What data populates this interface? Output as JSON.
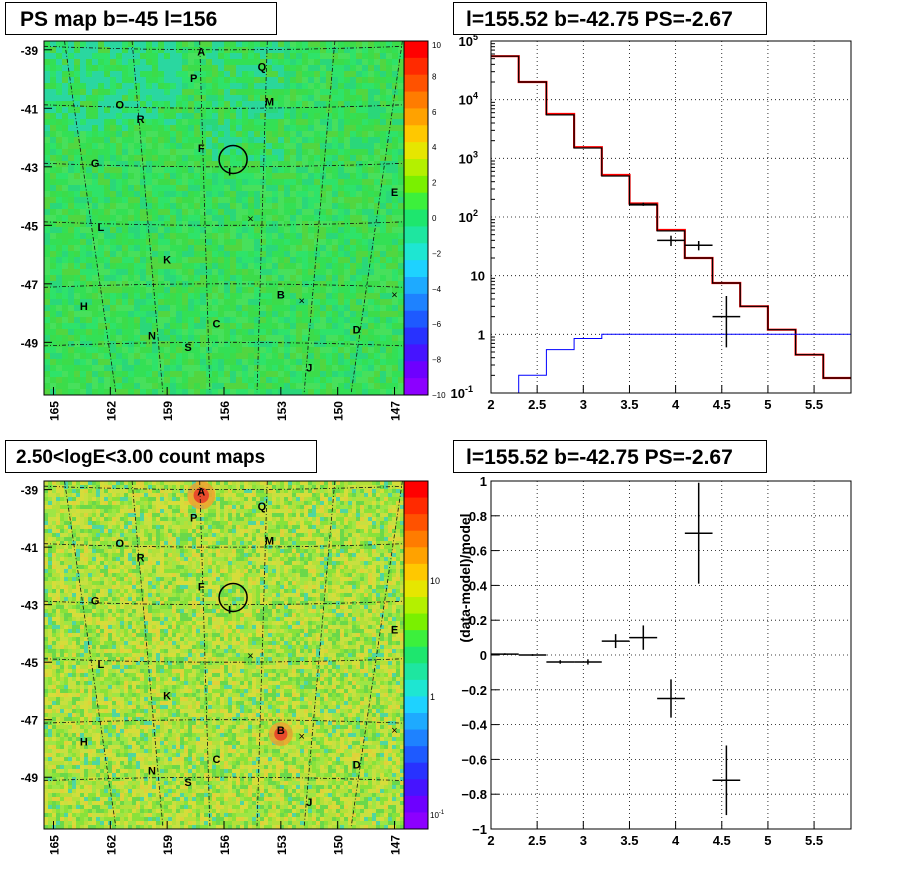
{
  "panels": {
    "ps_map": {
      "title": "PS map b=-45 l=156",
      "colorbar_ticks": [
        "10",
        "8",
        "6",
        "4",
        "2",
        "0",
        "−2",
        "−4",
        "−6",
        "−8",
        "−10"
      ],
      "colorbar_range": [
        -10,
        10
      ]
    },
    "count_map": {
      "title": "2.50<logE<3.00 count maps",
      "colorbar_ticks": [
        "10",
        "1"
      ],
      "colorbar_minor_label": "10",
      "colorbar_minor_exp": "-1"
    },
    "spectrum": {
      "title": "l=155.52 b=-42.75 PS=-2.67"
    },
    "residual": {
      "title": "l=155.52 b=-42.75 PS=-2.67"
    }
  },
  "map_axes": {
    "y_ticks": [
      "-39",
      "-41",
      "-43",
      "-45",
      "-47",
      "-49"
    ],
    "x_ticks": [
      "165",
      "162",
      "159",
      "156",
      "153",
      "150",
      "147"
    ]
  },
  "sources": [
    {
      "label": "A",
      "l": 157.2,
      "b": -39.2
    },
    {
      "label": "Q",
      "l": 154.0,
      "b": -39.7
    },
    {
      "label": "P",
      "l": 157.6,
      "b": -40.1
    },
    {
      "label": "O",
      "l": 161.5,
      "b": -41.0
    },
    {
      "label": "M",
      "l": 153.6,
      "b": -40.9
    },
    {
      "label": "R",
      "l": 160.4,
      "b": -41.5
    },
    {
      "label": "F",
      "l": 157.2,
      "b": -42.5
    },
    {
      "label": "I",
      "l": 155.7,
      "b": -43.3
    },
    {
      "label": "G",
      "l": 162.8,
      "b": -43.0
    },
    {
      "label": "E",
      "l": 147.0,
      "b": -44.0
    },
    {
      "label": "L",
      "l": 162.5,
      "b": -45.2
    },
    {
      "label": "K",
      "l": 159.0,
      "b": -46.3
    },
    {
      "label": "B",
      "l": 153.0,
      "b": -47.5
    },
    {
      "label": "H",
      "l": 163.4,
      "b": -47.9
    },
    {
      "label": "C",
      "l": 156.4,
      "b": -48.5
    },
    {
      "label": "D",
      "l": 149.0,
      "b": -48.7
    },
    {
      "label": "N",
      "l": 159.8,
      "b": -48.9
    },
    {
      "label": "S",
      "l": 157.9,
      "b": -49.3
    },
    {
      "label": "J",
      "l": 151.5,
      "b": -50.0
    }
  ],
  "chart_data": [
    {
      "type": "heatmap",
      "title": "PS map b=-45 l=156",
      "xlabel": "",
      "ylabel": "",
      "xlim": [
        165.5,
        146.5
      ],
      "ylim": [
        -50.8,
        -38.7
      ],
      "zlim": [
        -10,
        10
      ],
      "circle": {
        "l": 155.52,
        "b": -42.75
      }
    },
    {
      "type": "heatmap",
      "title": "2.50<logE<3.00 count maps",
      "xlabel": "",
      "ylabel": "",
      "xlim": [
        165.5,
        146.5
      ],
      "ylim": [
        -50.8,
        -38.7
      ],
      "zscale": "log",
      "circle": {
        "l": 155.52,
        "b": -42.75
      }
    },
    {
      "type": "line",
      "title": "l=155.52 b=-42.75 PS=-2.67",
      "xlabel": "",
      "ylabel": "",
      "xlim": [
        2,
        5.9
      ],
      "ylim": [
        0.1,
        100000
      ],
      "yscale": "log",
      "grid": true,
      "x_ticks": [
        "2",
        "2.5",
        "3",
        "3.5",
        "4",
        "4.5",
        "5",
        "5.5"
      ],
      "y_ticks_text": [
        "1",
        "10"
      ],
      "y_ticks_pow": [
        {
          "b": "10",
          "e": "-1"
        },
        {
          "b": "10",
          "e": "2"
        },
        {
          "b": "10",
          "e": "3"
        },
        {
          "b": "10",
          "e": "4"
        },
        {
          "b": "10",
          "e": "5"
        }
      ],
      "bin_edges": [
        2.0,
        2.3,
        2.6,
        2.9,
        3.2,
        3.5,
        3.8,
        4.1,
        4.4,
        4.7,
        5.0,
        5.3,
        5.6,
        5.9
      ],
      "series": [
        {
          "color": "#ff0000",
          "values": [
            55000,
            20000,
            5700,
            1550,
            520,
            170,
            60,
            20,
            7.5,
            3,
            1.2,
            0.45,
            0.18
          ]
        },
        {
          "color": "#000000",
          "values": [
            55000,
            20000,
            5500,
            1500,
            500,
            160,
            58,
            20,
            7.5,
            3,
            1.2,
            0.45,
            0.18
          ]
        },
        {
          "color": "#0000ff",
          "values": [
            0.08,
            0.2,
            0.55,
            0.85,
            1,
            1,
            1,
            1,
            1,
            1,
            1,
            1,
            1
          ]
        }
      ],
      "data_points": [
        {
          "x": 3.95,
          "y": 40,
          "xerr": 0.15,
          "ylo": 32,
          "yhi": 48
        },
        {
          "x": 4.25,
          "y": 33,
          "xerr": 0.15,
          "ylo": 27,
          "yhi": 39
        },
        {
          "x": 4.55,
          "y": 2,
          "xerr": 0.15,
          "ylo": 0.6,
          "yhi": 4.5
        },
        {
          "x": 3.65,
          "y": 165,
          "xerr": 0.15,
          "ylo": 155,
          "yhi": 175
        }
      ]
    },
    {
      "type": "scatter",
      "title": "l=155.52 b=-42.75 PS=-2.67",
      "xlabel": "",
      "ylabel": "(data-model)/model",
      "xlim": [
        2,
        5.9
      ],
      "ylim": [
        -1,
        1
      ],
      "grid": true,
      "x_ticks": [
        "2",
        "2.5",
        "3",
        "3.5",
        "4",
        "4.5",
        "5",
        "5.5"
      ],
      "y_ticks": [
        "1",
        "0.8",
        "0.6",
        "0.4",
        "0.2",
        "0",
        "−0.2",
        "−0.4",
        "−0.6",
        "−0.8",
        "−1"
      ],
      "points": [
        {
          "x": 2.15,
          "y": 0.005,
          "xerr": 0.15,
          "yerr": 0.005
        },
        {
          "x": 2.45,
          "y": 0.0,
          "xerr": 0.15,
          "yerr": 0.005
        },
        {
          "x": 2.75,
          "y": -0.04,
          "xerr": 0.15,
          "yerr": 0.01
        },
        {
          "x": 3.05,
          "y": -0.04,
          "xerr": 0.15,
          "yerr": 0.015
        },
        {
          "x": 3.35,
          "y": 0.08,
          "xerr": 0.15,
          "yerr": 0.04
        },
        {
          "x": 3.65,
          "y": 0.1,
          "xerr": 0.15,
          "yerr": 0.07
        },
        {
          "x": 3.95,
          "y": -0.25,
          "xerr": 0.15,
          "yerr": 0.11
        },
        {
          "x": 4.25,
          "y": 0.7,
          "xerr": 0.15,
          "yerr": 0.29
        },
        {
          "x": 4.55,
          "y": -0.72,
          "xerr": 0.15,
          "yerr": 0.2
        }
      ]
    }
  ]
}
